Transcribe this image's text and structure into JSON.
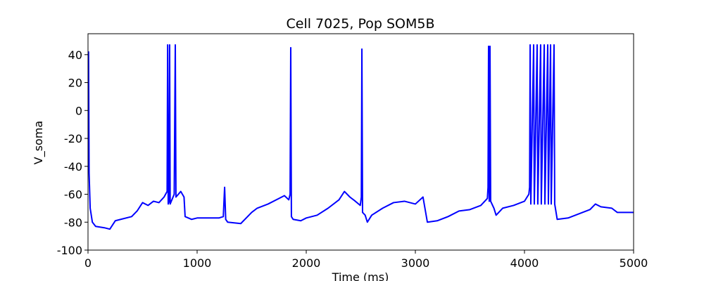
{
  "chart_data": {
    "type": "line",
    "title": "Cell 7025, Pop SOM5B",
    "x_label": "Time (ms)",
    "y_label": "V_soma",
    "xlim": [
      0,
      5000
    ],
    "ylim": [
      -100,
      55
    ],
    "xticks": [
      0,
      1000,
      2000,
      3000,
      4000,
      5000
    ],
    "yticks": [
      -100,
      -80,
      -60,
      -40,
      -20,
      0,
      20,
      40
    ],
    "series": [
      {
        "name": "V_soma",
        "color": "#0000ff",
        "x": [
          0,
          5,
          10,
          20,
          40,
          70,
          150,
          200,
          250,
          300,
          400,
          450,
          500,
          550,
          600,
          650,
          697,
          725,
          730,
          735,
          742,
          748,
          753,
          790,
          800,
          806,
          850,
          880,
          890,
          950,
          1000,
          1200,
          1240,
          1252,
          1262,
          1280,
          1400,
          1450,
          1500,
          1550,
          1650,
          1750,
          1800,
          1840,
          1852,
          1858,
          1864,
          1880,
          1950,
          2000,
          2100,
          2200,
          2300,
          2350,
          2400,
          2450,
          2495,
          2505,
          2510,
          2516,
          2540,
          2560,
          2600,
          2700,
          2800,
          2900,
          3000,
          3070,
          3110,
          3200,
          3300,
          3400,
          3500,
          3600,
          3660,
          3666,
          3671,
          3677,
          3684,
          3690,
          3720,
          3740,
          3800,
          3900,
          4000,
          4040,
          4047,
          4052,
          4058,
          4084,
          4090,
          4116,
          4122,
          4148,
          4154,
          4181,
          4187,
          4213,
          4219,
          4239,
          4245,
          4271,
          4277,
          4300,
          4400,
          4500,
          4600,
          4650,
          4700,
          4800,
          4850,
          5000
        ],
        "values": [
          42,
          42,
          -45,
          -70,
          -80,
          -83,
          -84,
          -85,
          -79,
          -78,
          -76,
          -72,
          -66,
          -68,
          -65,
          -66,
          -62,
          -58,
          47,
          -67,
          -65,
          47,
          -67,
          -60,
          47,
          -62,
          -58,
          -62,
          -76,
          -78,
          -77,
          -77,
          -76,
          -55,
          -78,
          -80,
          -81,
          -77,
          -73,
          -70,
          -67,
          -63,
          -61,
          -64,
          -60,
          45,
          -76,
          -78,
          -79,
          -77,
          -75,
          -70,
          -64,
          -58,
          -62,
          -65,
          -68,
          -62,
          44,
          -73,
          -75,
          -80,
          -75,
          -70,
          -66,
          -65,
          -67,
          -62,
          -80,
          -79,
          -76,
          -72,
          -71,
          -68,
          -63,
          -55,
          46,
          -65,
          46,
          -65,
          -70,
          -75,
          -70,
          -68,
          -65,
          -60,
          -55,
          47,
          -67,
          47,
          -67,
          47,
          -67,
          47,
          -67,
          47,
          -67,
          47,
          -67,
          47,
          -67,
          47,
          -67,
          -78,
          -77,
          -74,
          -71,
          -67,
          -69,
          -70,
          -73,
          -73
        ]
      }
    ]
  }
}
